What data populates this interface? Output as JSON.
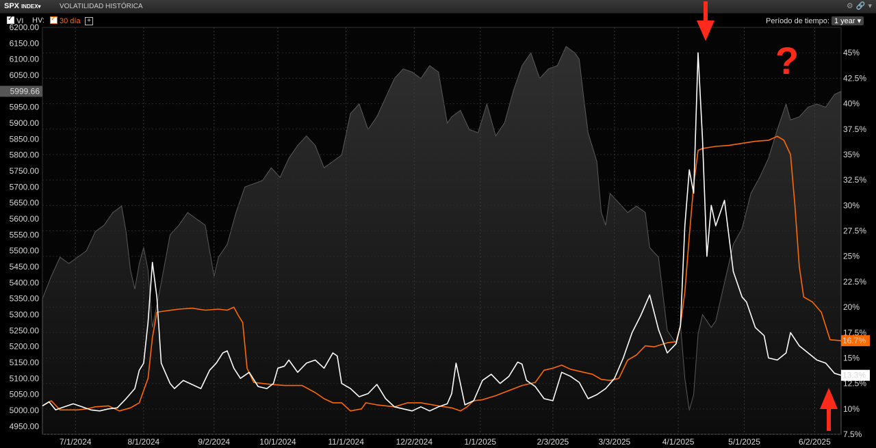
{
  "header": {
    "ticker": "SPX",
    "ticker_suffix": "INDEX",
    "title": "VOLATILIDAD HISTÓRICA"
  },
  "toolbar": {
    "vi_label": "VI",
    "hv_label": "HV:",
    "hv_series_label": "30 día",
    "period_label": "Período de tiempo:",
    "period_value": "1 year"
  },
  "annotations": {
    "question_mark": "?"
  },
  "colors": {
    "hv_line": "#ff6a00",
    "iv_line": "#ffffff",
    "price_area": "#2a2a2a",
    "arrow": "#ff2a1a"
  },
  "chart_data": {
    "type": "line",
    "x_tick_labels": [
      "7/1/2024",
      "8/1/2024",
      "9/2/2024",
      "10/1/2024",
      "11/1/2024",
      "12/2/2024",
      "1/1/2025",
      "2/3/2025",
      "3/3/2025",
      "4/1/2025",
      "5/1/2025",
      "6/2/2025"
    ],
    "x_tick_day_index": [
      15,
      46,
      78,
      107,
      138,
      169,
      199,
      232,
      260,
      289,
      319,
      351
    ],
    "x_range_days": [
      0,
      363
    ],
    "left_axis": {
      "ylim": [
        4925,
        6200
      ],
      "ticks": [
        4950,
        5000,
        5050,
        5100,
        5150,
        5200,
        5250,
        5300,
        5350,
        5400,
        5450,
        5500,
        5550,
        5600,
        5650,
        5700,
        5750,
        5800,
        5850,
        5900,
        5950,
        6000,
        6050,
        6100,
        6150,
        6200
      ],
      "last_value_label": "5999.66"
    },
    "right_axis": {
      "ylim": [
        7.5,
        47.5
      ],
      "ticks": [
        7.5,
        10,
        12.5,
        15,
        17.5,
        20,
        22.5,
        25,
        27.5,
        30,
        32.5,
        35,
        37.5,
        40,
        42.5,
        45
      ],
      "tick_labels": [
        "7.5%",
        "10%",
        "12.5%",
        "15%",
        "17.5%",
        "20%",
        "22.5%",
        "25%",
        "27.5%",
        "30%",
        "32.5%",
        "35%",
        "37.5%",
        "40%",
        "42.5%",
        "45%"
      ]
    },
    "series": [
      {
        "name": "30 día",
        "axis": "right",
        "last_value_label": "16.7%",
        "points": [
          [
            0,
            10.3
          ],
          [
            4,
            10.8
          ],
          [
            8,
            9.9
          ],
          [
            12,
            9.9
          ],
          [
            16,
            9.9
          ],
          [
            20,
            10
          ],
          [
            24,
            10.2
          ],
          [
            30,
            10.3
          ],
          [
            35,
            9.8
          ],
          [
            40,
            10.1
          ],
          [
            44,
            10.6
          ],
          [
            48,
            13
          ],
          [
            50,
            17
          ],
          [
            52,
            19.5
          ],
          [
            55,
            19.6
          ],
          [
            62,
            19.8
          ],
          [
            68,
            19.9
          ],
          [
            74,
            19.7
          ],
          [
            80,
            19.8
          ],
          [
            84,
            19.7
          ],
          [
            87,
            20
          ],
          [
            89,
            19.2
          ],
          [
            91,
            18.5
          ],
          [
            93,
            14
          ],
          [
            96,
            12.6
          ],
          [
            104,
            12.4
          ],
          [
            110,
            12.3
          ],
          [
            118,
            12.3
          ],
          [
            124,
            11.6
          ],
          [
            128,
            11
          ],
          [
            132,
            10.6
          ],
          [
            136,
            10.6
          ],
          [
            140,
            9.8
          ],
          [
            145,
            10
          ],
          [
            147,
            10.6
          ],
          [
            152,
            10.4
          ],
          [
            160,
            10.2
          ],
          [
            166,
            10.6
          ],
          [
            172,
            10.6
          ],
          [
            180,
            10.3
          ],
          [
            186,
            10.1
          ],
          [
            190,
            9.8
          ],
          [
            193,
            10.2
          ],
          [
            196,
            10.8
          ],
          [
            200,
            10.9
          ],
          [
            206,
            11.3
          ],
          [
            212,
            11.8
          ],
          [
            218,
            12.3
          ],
          [
            224,
            12.6
          ],
          [
            228,
            13.8
          ],
          [
            232,
            14
          ],
          [
            236,
            14.3
          ],
          [
            240,
            13.9
          ],
          [
            246,
            13.6
          ],
          [
            250,
            13.4
          ],
          [
            254,
            12.9
          ],
          [
            258,
            12.8
          ],
          [
            262,
            13
          ],
          [
            266,
            14.8
          ],
          [
            270,
            15.3
          ],
          [
            274,
            16.2
          ],
          [
            278,
            16.1
          ],
          [
            284,
            16.5
          ],
          [
            288,
            16.6
          ],
          [
            290,
            18.2
          ],
          [
            292,
            21.5
          ],
          [
            294,
            27
          ],
          [
            296,
            32
          ],
          [
            298,
            35.4
          ],
          [
            300,
            35.6
          ],
          [
            306,
            35.8
          ],
          [
            312,
            35.9
          ],
          [
            318,
            36.1
          ],
          [
            324,
            36.3
          ],
          [
            330,
            36.4
          ],
          [
            334,
            36.8
          ],
          [
            337,
            36.4
          ],
          [
            340,
            35
          ],
          [
            342,
            30
          ],
          [
            344,
            24
          ],
          [
            346,
            21
          ],
          [
            350,
            20.5
          ],
          [
            354,
            19.5
          ],
          [
            358,
            16.8
          ],
          [
            363,
            16.7
          ]
        ]
      },
      {
        "name": "VI",
        "axis": "right",
        "last_value_label": "13.3%",
        "points": [
          [
            0,
            10.3
          ],
          [
            3,
            10.7
          ],
          [
            6,
            9.9
          ],
          [
            10,
            10.2
          ],
          [
            14,
            10.5
          ],
          [
            18,
            10.2
          ],
          [
            22,
            9.9
          ],
          [
            26,
            9.8
          ],
          [
            30,
            10
          ],
          [
            34,
            10.1
          ],
          [
            38,
            11
          ],
          [
            42,
            12
          ],
          [
            44,
            13.8
          ],
          [
            46,
            14.5
          ],
          [
            48,
            18.5
          ],
          [
            50,
            24.4
          ],
          [
            52,
            21
          ],
          [
            54,
            14.5
          ],
          [
            56,
            13.5
          ],
          [
            58,
            12.5
          ],
          [
            60,
            12
          ],
          [
            64,
            12.8
          ],
          [
            68,
            12.4
          ],
          [
            72,
            12
          ],
          [
            76,
            13.8
          ],
          [
            79,
            14.5
          ],
          [
            82,
            15.5
          ],
          [
            84,
            15.7
          ],
          [
            87,
            14
          ],
          [
            90,
            13
          ],
          [
            94,
            13.6
          ],
          [
            98,
            12.2
          ],
          [
            102,
            12
          ],
          [
            105,
            12.5
          ],
          [
            107,
            14
          ],
          [
            110,
            14.2
          ],
          [
            112,
            14.8
          ],
          [
            116,
            13.6
          ],
          [
            120,
            14.5
          ],
          [
            124,
            14.8
          ],
          [
            128,
            14
          ],
          [
            132,
            15.5
          ],
          [
            134,
            15.2
          ],
          [
            136,
            12.5
          ],
          [
            140,
            12
          ],
          [
            144,
            11.2
          ],
          [
            148,
            11.5
          ],
          [
            152,
            12.4
          ],
          [
            156,
            11
          ],
          [
            160,
            10.2
          ],
          [
            164,
            10
          ],
          [
            168,
            9.8
          ],
          [
            172,
            10.2
          ],
          [
            176,
            9.8
          ],
          [
            180,
            10.2
          ],
          [
            184,
            10.5
          ],
          [
            186,
            11.5
          ],
          [
            188,
            14.5
          ],
          [
            192,
            10.4
          ],
          [
            196,
            10.8
          ],
          [
            200,
            12.8
          ],
          [
            204,
            13.4
          ],
          [
            208,
            12.5
          ],
          [
            212,
            13.2
          ],
          [
            216,
            14.6
          ],
          [
            218,
            14.4
          ],
          [
            220,
            12.8
          ],
          [
            224,
            12.2
          ],
          [
            228,
            11
          ],
          [
            232,
            10.8
          ],
          [
            236,
            13.6
          ],
          [
            240,
            13.2
          ],
          [
            244,
            12.6
          ],
          [
            248,
            11
          ],
          [
            252,
            11.4
          ],
          [
            256,
            12
          ],
          [
            260,
            13
          ],
          [
            264,
            15
          ],
          [
            268,
            17.5
          ],
          [
            272,
            19.2
          ],
          [
            276,
            21.2
          ],
          [
            280,
            17.8
          ],
          [
            284,
            15.5
          ],
          [
            288,
            16.4
          ],
          [
            290,
            18.2
          ],
          [
            292,
            28
          ],
          [
            294,
            33.5
          ],
          [
            296,
            31.2
          ],
          [
            298,
            45
          ],
          [
            300,
            36.5
          ],
          [
            302,
            25
          ],
          [
            304,
            30
          ],
          [
            306,
            28
          ],
          [
            310,
            30.5
          ],
          [
            314,
            23.5
          ],
          [
            318,
            21
          ],
          [
            320,
            20.5
          ],
          [
            324,
            18
          ],
          [
            328,
            17.2
          ],
          [
            330,
            15
          ],
          [
            334,
            14.8
          ],
          [
            338,
            15.5
          ],
          [
            340,
            17.5
          ],
          [
            344,
            16.2
          ],
          [
            348,
            15.5
          ],
          [
            352,
            14.8
          ],
          [
            356,
            14.5
          ],
          [
            360,
            13.5
          ],
          [
            363,
            13.3
          ]
        ]
      },
      {
        "name": "SPX",
        "axis": "left",
        "last_value_label": "5999.66",
        "points": [
          [
            0,
            5350
          ],
          [
            4,
            5420
          ],
          [
            8,
            5480
          ],
          [
            12,
            5460
          ],
          [
            16,
            5480
          ],
          [
            20,
            5500
          ],
          [
            24,
            5560
          ],
          [
            28,
            5580
          ],
          [
            32,
            5620
          ],
          [
            36,
            5640
          ],
          [
            38,
            5560
          ],
          [
            40,
            5440
          ],
          [
            42,
            5380
          ],
          [
            44,
            5460
          ],
          [
            46,
            5510
          ],
          [
            48,
            5440
          ],
          [
            50,
            5260
          ],
          [
            52,
            5330
          ],
          [
            54,
            5400
          ],
          [
            58,
            5550
          ],
          [
            62,
            5580
          ],
          [
            66,
            5620
          ],
          [
            70,
            5600
          ],
          [
            74,
            5580
          ],
          [
            78,
            5420
          ],
          [
            80,
            5480
          ],
          [
            84,
            5520
          ],
          [
            88,
            5620
          ],
          [
            92,
            5700
          ],
          [
            96,
            5710
          ],
          [
            100,
            5720
          ],
          [
            104,
            5760
          ],
          [
            108,
            5730
          ],
          [
            112,
            5790
          ],
          [
            116,
            5830
          ],
          [
            120,
            5860
          ],
          [
            124,
            5830
          ],
          [
            128,
            5760
          ],
          [
            132,
            5780
          ],
          [
            136,
            5800
          ],
          [
            140,
            5930
          ],
          [
            144,
            5960
          ],
          [
            148,
            5880
          ],
          [
            152,
            5920
          ],
          [
            156,
            5980
          ],
          [
            160,
            6040
          ],
          [
            164,
            6070
          ],
          [
            168,
            6060
          ],
          [
            172,
            6040
          ],
          [
            176,
            6080
          ],
          [
            180,
            6060
          ],
          [
            184,
            5900
          ],
          [
            186,
            5920
          ],
          [
            190,
            5940
          ],
          [
            194,
            5880
          ],
          [
            198,
            5870
          ],
          [
            202,
            5960
          ],
          [
            206,
            5860
          ],
          [
            210,
            5900
          ],
          [
            214,
            6000
          ],
          [
            218,
            6080
          ],
          [
            222,
            6120
          ],
          [
            226,
            6040
          ],
          [
            230,
            6070
          ],
          [
            234,
            6080
          ],
          [
            238,
            6140
          ],
          [
            242,
            6120
          ],
          [
            244,
            6100
          ],
          [
            246,
            5980
          ],
          [
            248,
            5870
          ],
          [
            252,
            5780
          ],
          [
            254,
            5620
          ],
          [
            256,
            5580
          ],
          [
            258,
            5680
          ],
          [
            262,
            5650
          ],
          [
            266,
            5620
          ],
          [
            270,
            5640
          ],
          [
            274,
            5620
          ],
          [
            276,
            5510
          ],
          [
            280,
            5480
          ],
          [
            284,
            5250
          ],
          [
            288,
            5210
          ],
          [
            290,
            5270
          ],
          [
            292,
            5100
          ],
          [
            294,
            5000
          ],
          [
            296,
            5050
          ],
          [
            298,
            5240
          ],
          [
            300,
            5300
          ],
          [
            304,
            5260
          ],
          [
            306,
            5280
          ],
          [
            310,
            5400
          ],
          [
            314,
            5520
          ],
          [
            318,
            5570
          ],
          [
            322,
            5680
          ],
          [
            326,
            5730
          ],
          [
            330,
            5790
          ],
          [
            334,
            5880
          ],
          [
            338,
            5960
          ],
          [
            340,
            5910
          ],
          [
            344,
            5920
          ],
          [
            348,
            5950
          ],
          [
            352,
            5960
          ],
          [
            356,
            5950
          ],
          [
            360,
            5990
          ],
          [
            363,
            5999.66
          ]
        ]
      }
    ],
    "grid": true,
    "legend": "top-left"
  }
}
